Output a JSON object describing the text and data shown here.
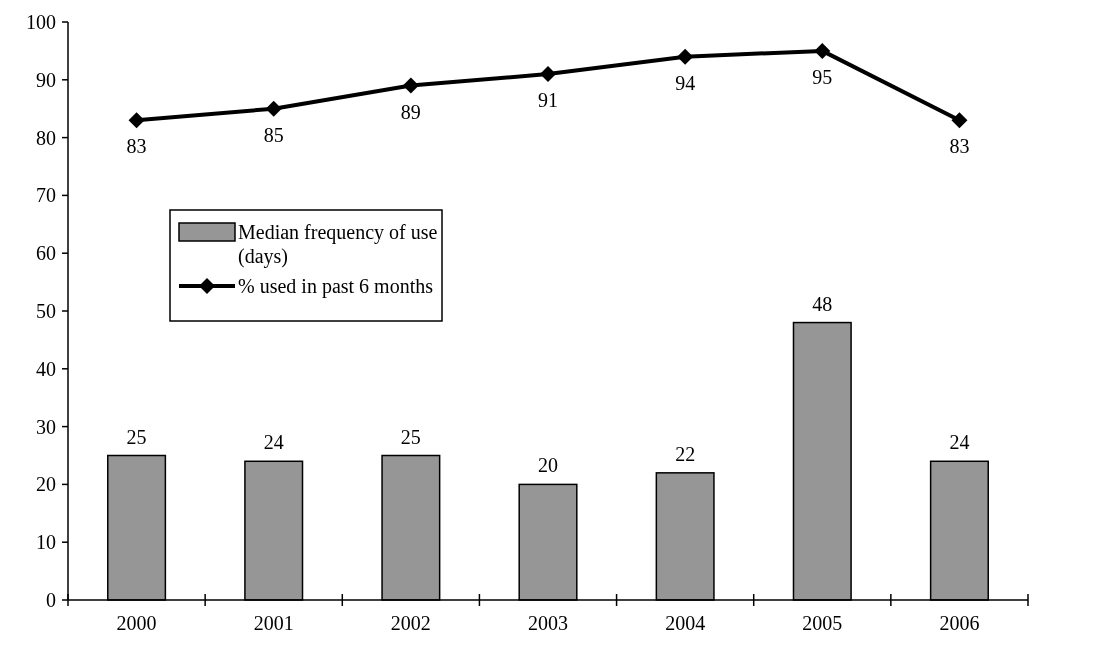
{
  "chart_data": {
    "type": "bar",
    "categories": [
      "2000",
      "2001",
      "2002",
      "2003",
      "2004",
      "2005",
      "2006"
    ],
    "series": [
      {
        "name": "Median frequency of use (days)",
        "color": "#969696",
        "values": [
          25,
          24,
          25,
          20,
          22,
          48,
          24
        ]
      },
      {
        "name": "% used in past 6 months",
        "type": "line",
        "color": "#000000",
        "values": [
          83,
          85,
          89,
          91,
          94,
          95,
          83
        ]
      }
    ],
    "ylim": [
      0,
      100
    ],
    "yticks": [
      0,
      10,
      20,
      30,
      40,
      50,
      60,
      70,
      80,
      90,
      100
    ],
    "data_labels": true,
    "legend": "left",
    "marker": "diamond",
    "line_style": "solid",
    "grid": false
  }
}
